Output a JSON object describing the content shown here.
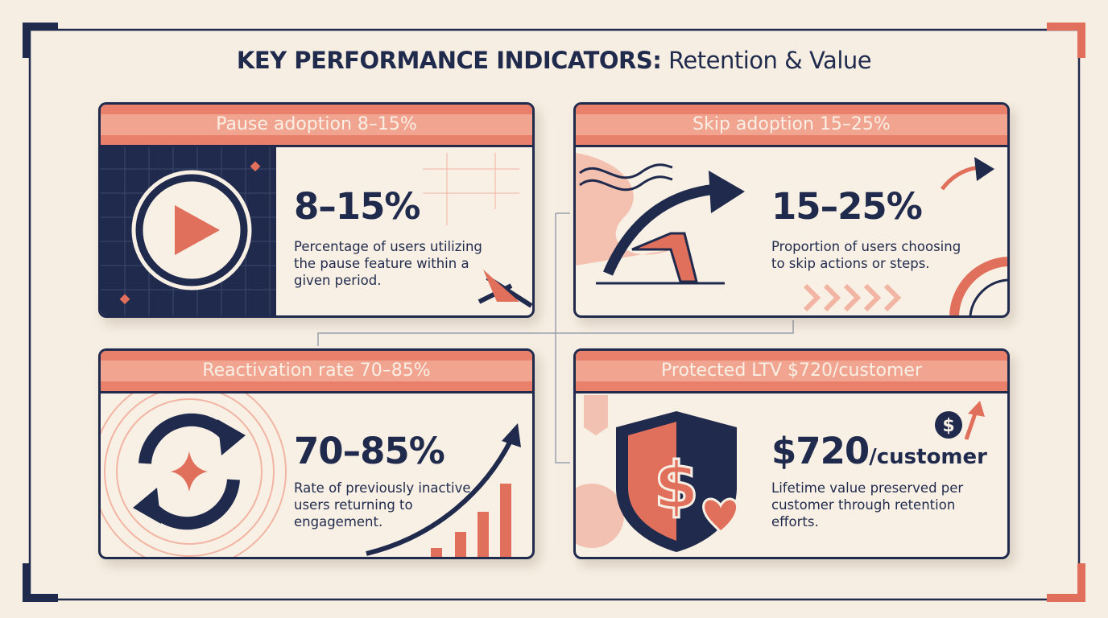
{
  "header": {
    "title_bold": "KEY PERFORMANCE INDICATORS:",
    "title_rest": "Retention & Value"
  },
  "cards": [
    {
      "header": "Pause adoption 8–15%",
      "metric": "8–15%",
      "description": "Percentage of users utilizing the pause feature within a given period."
    },
    {
      "header": "Skip adoption 15–25%",
      "metric": "15–25%",
      "description": "Proportion of users choosing to skip actions or steps."
    },
    {
      "header": "Reactivation rate 70–85%",
      "metric": "70–85%",
      "description": "Rate of previously inactive users returning to engagement."
    },
    {
      "header": "Protected LTV $720/customer",
      "metric": "$720",
      "metric_unit": "/customer",
      "description": "Lifetime value preserved per customer through retention efforts."
    }
  ]
}
